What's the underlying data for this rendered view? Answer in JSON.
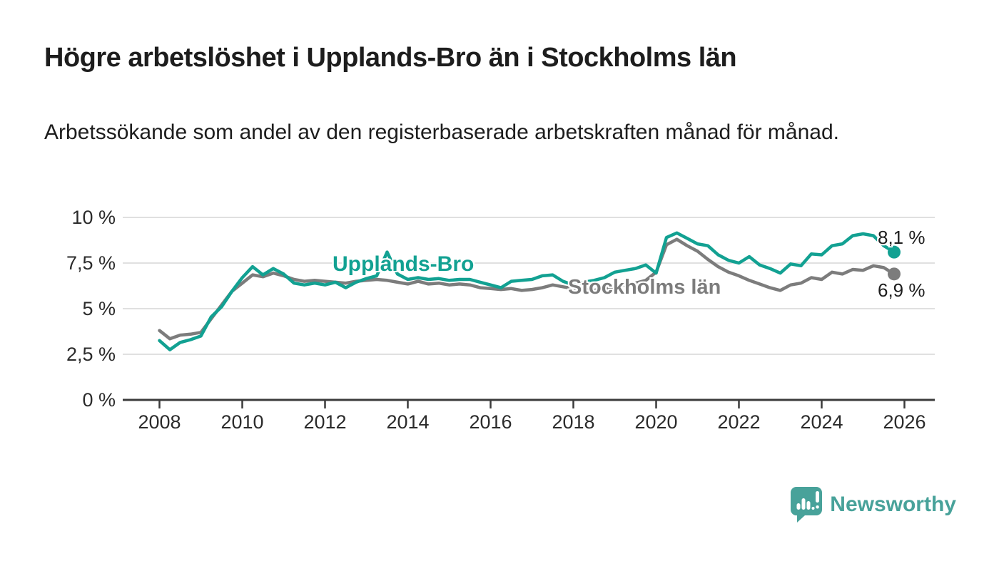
{
  "header": {
    "title": "Högre arbetslöshet i Upplands-Bro än i Stockholms län",
    "subtitle": "Arbetssökande som andel av den registerbaserade arbetskraften månad för månad."
  },
  "colors": {
    "accent_teal": "#12a192",
    "series_gray": "#7c7c7c",
    "grid": "#dcdcdc",
    "axis": "#3b3b3b",
    "text": "#1d1d1d",
    "logo_teal": "#48a29a"
  },
  "chart_data": {
    "type": "line",
    "title": "Högre arbetslöshet i Upplands-Bro än i Stockholms län",
    "subtitle": "Arbetssökande som andel av den registerbaserade arbetskraften månad för månad.",
    "xlabel": "",
    "ylabel": "",
    "grid": "horizontal",
    "legend": "inline-labels-and-end-values",
    "ylim": [
      0,
      10
    ],
    "xlim": [
      2007.1,
      2026.7
    ],
    "x_start": 2008,
    "x_step_years": 0.25,
    "x_tick_years": [
      2008,
      2010,
      2012,
      2014,
      2016,
      2018,
      2020,
      2022,
      2024,
      2026
    ],
    "x_tick_labels": [
      "2008",
      "2010",
      "2012",
      "2014",
      "2016",
      "2018",
      "2020",
      "2022",
      "2024",
      "2026"
    ],
    "y_tick_values": [
      0,
      2.5,
      5,
      7.5,
      10
    ],
    "y_tick_labels": [
      "0 %",
      "2,5 %",
      "5 %",
      "7,5 %",
      "10 %"
    ],
    "series": [
      {
        "name": "Upplands-Bro",
        "color": "#12a192",
        "end_label": "8,1 %",
        "end_value": 8.1,
        "values": [
          3.25,
          2.75,
          3.15,
          3.3,
          3.5,
          4.55,
          5.1,
          5.95,
          6.7,
          7.3,
          6.85,
          7.2,
          6.9,
          6.4,
          6.3,
          6.4,
          6.3,
          6.45,
          6.15,
          6.45,
          6.65,
          6.8,
          8.1,
          6.9,
          6.6,
          6.7,
          6.6,
          6.65,
          6.55,
          6.6,
          6.6,
          6.45,
          6.3,
          6.15,
          6.5,
          6.55,
          6.6,
          6.8,
          6.85,
          6.5,
          6.3,
          6.45,
          6.55,
          6.7,
          7.0,
          7.1,
          7.2,
          7.4,
          6.95,
          8.9,
          9.15,
          8.85,
          8.55,
          8.45,
          7.95,
          7.65,
          7.5,
          7.85,
          7.4,
          7.2,
          6.95,
          7.45,
          7.35,
          8.0,
          7.95,
          8.45,
          8.55,
          9.0,
          9.1,
          9.0,
          8.45,
          8.1
        ]
      },
      {
        "name": "Stockholms län",
        "color": "#7c7c7c",
        "end_label": "6,9 %",
        "end_value": 6.9,
        "values": [
          3.8,
          3.35,
          3.55,
          3.6,
          3.7,
          4.45,
          5.2,
          5.95,
          6.4,
          6.85,
          6.75,
          6.95,
          6.8,
          6.6,
          6.5,
          6.55,
          6.5,
          6.45,
          6.4,
          6.5,
          6.55,
          6.6,
          6.55,
          6.45,
          6.35,
          6.5,
          6.35,
          6.4,
          6.3,
          6.35,
          6.3,
          6.15,
          6.1,
          6.05,
          6.1,
          6.0,
          6.05,
          6.15,
          6.3,
          6.2,
          6.1,
          6.05,
          6.0,
          6.1,
          6.2,
          6.3,
          6.4,
          6.55,
          7.0,
          8.5,
          8.8,
          8.45,
          8.15,
          7.7,
          7.3,
          7.0,
          6.8,
          6.55,
          6.35,
          6.15,
          6.0,
          6.3,
          6.4,
          6.7,
          6.6,
          7.0,
          6.9,
          7.15,
          7.1,
          7.35,
          7.25,
          6.9
        ]
      }
    ]
  },
  "footer": {
    "brand": "Newsworthy"
  }
}
